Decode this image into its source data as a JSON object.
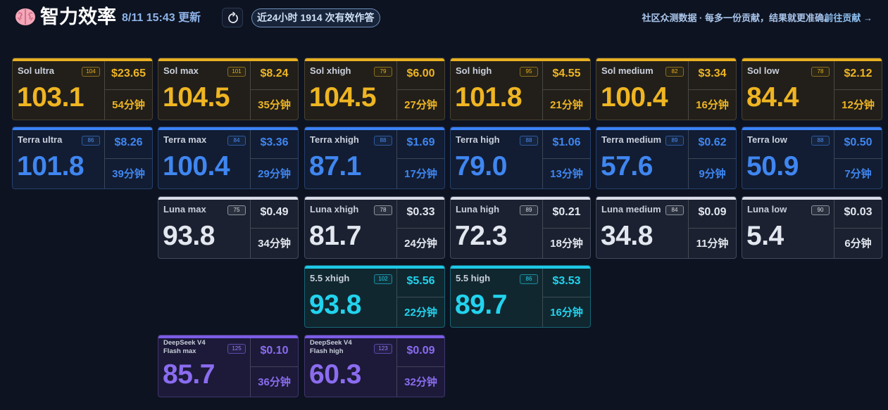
{
  "header": {
    "title": "智力效率",
    "updated": "8/11 15:43 更新",
    "count_pill": "近24小时 1914 次有效作答",
    "note": "社区众测数据 · 每多一份贡献，结果就更准确。",
    "contribute": "前往贡献 →",
    "icons": {
      "brain": "brain-icon",
      "refresh": "refresh-icon"
    }
  },
  "colors": {
    "background": "#0d1321",
    "sol": "#efb522",
    "terra": "#3f86f1",
    "luna": "#e3e7ef",
    "gpt55": "#22d3ee",
    "deepseek": "#8b6cf0"
  },
  "cards": [
    {
      "family": "sol",
      "name": "Sol ultra",
      "badge": "104",
      "score": "103.1",
      "price": "$23.65",
      "time": "54分钟"
    },
    {
      "family": "sol",
      "name": "Sol max",
      "badge": "101",
      "score": "104.5",
      "price": "$8.24",
      "time": "35分钟"
    },
    {
      "family": "sol",
      "name": "Sol xhigh",
      "badge": "79",
      "score": "104.5",
      "price": "$6.00",
      "time": "27分钟"
    },
    {
      "family": "sol",
      "name": "Sol high",
      "badge": "95",
      "score": "101.8",
      "price": "$4.55",
      "time": "21分钟"
    },
    {
      "family": "sol",
      "name": "Sol medium",
      "badge": "82",
      "score": "100.4",
      "price": "$3.34",
      "time": "16分钟"
    },
    {
      "family": "sol",
      "name": "Sol low",
      "badge": "78",
      "score": "84.4",
      "price": "$2.12",
      "time": "12分钟"
    },
    {
      "family": "terra",
      "name": "Terra ultra",
      "badge": "86",
      "score": "101.8",
      "price": "$8.26",
      "time": "39分钟"
    },
    {
      "family": "terra",
      "name": "Terra max",
      "badge": "84",
      "score": "100.4",
      "price": "$3.36",
      "time": "29分钟"
    },
    {
      "family": "terra",
      "name": "Terra xhigh",
      "badge": "88",
      "score": "87.1",
      "price": "$1.69",
      "time": "17分钟"
    },
    {
      "family": "terra",
      "name": "Terra high",
      "badge": "88",
      "score": "79.0",
      "price": "$1.06",
      "time": "13分钟"
    },
    {
      "family": "terra",
      "name": "Terra medium",
      "badge": "89",
      "score": "57.6",
      "price": "$0.62",
      "time": "9分钟"
    },
    {
      "family": "terra",
      "name": "Terra low",
      "badge": "88",
      "score": "50.9",
      "price": "$0.50",
      "time": "7分钟"
    },
    {
      "family": "luna",
      "name": "Luna max",
      "badge": "75",
      "score": "93.8",
      "price": "$0.49",
      "time": "34分钟"
    },
    {
      "family": "luna",
      "name": "Luna xhigh",
      "badge": "78",
      "score": "81.7",
      "price": "$0.33",
      "time": "24分钟"
    },
    {
      "family": "luna",
      "name": "Luna high",
      "badge": "89",
      "score": "72.3",
      "price": "$0.21",
      "time": "18分钟"
    },
    {
      "family": "luna",
      "name": "Luna medium",
      "badge": "84",
      "score": "34.8",
      "price": "$0.09",
      "time": "11分钟"
    },
    {
      "family": "luna",
      "name": "Luna low",
      "badge": "90",
      "score": "5.4",
      "price": "$0.03",
      "time": "6分钟"
    },
    {
      "family": "gpt",
      "name": "5.5 xhigh",
      "badge": "102",
      "score": "93.8",
      "price": "$5.56",
      "time": "22分钟"
    },
    {
      "family": "gpt",
      "name": "5.5 high",
      "badge": "86",
      "score": "89.7",
      "price": "$3.53",
      "time": "16分钟"
    },
    {
      "family": "ds",
      "name": "DeepSeek V4 Flash max",
      "badge": "125",
      "score": "85.7",
      "price": "$0.10",
      "time": "36分钟",
      "small": true
    },
    {
      "family": "ds",
      "name": "DeepSeek V4 Flash high",
      "badge": "123",
      "score": "60.3",
      "price": "$0.09",
      "time": "32分钟",
      "small": true
    }
  ]
}
